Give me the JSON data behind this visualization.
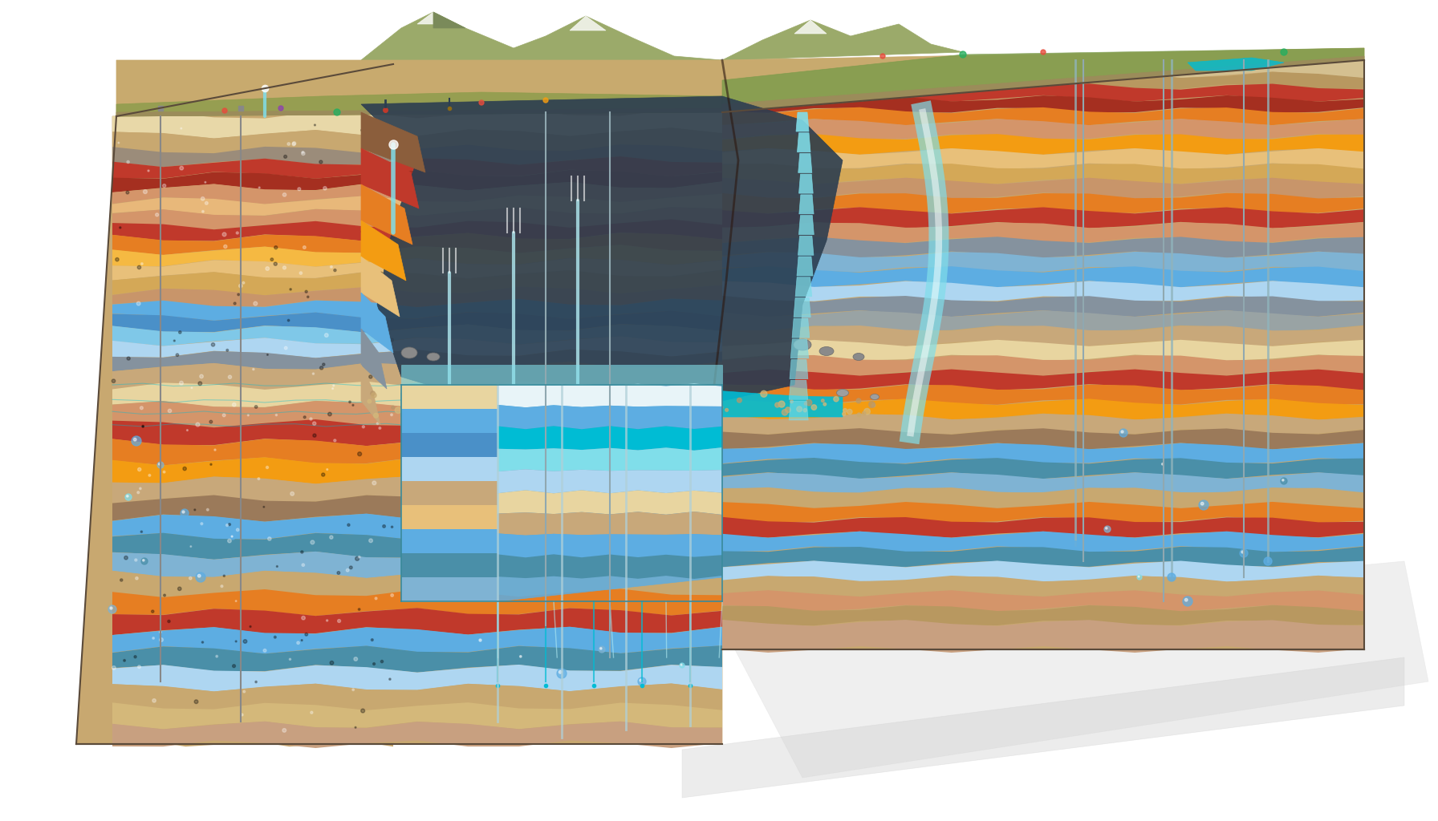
{
  "background_color": "#ffffff",
  "layer_colors_front": [
    "#e8d5a0",
    "#c8a86b",
    "#d4956a",
    "#8b5e3c",
    "#c0392b",
    "#e67e22",
    "#f39c12",
    "#e8c07a",
    "#d4a857",
    "#c8956a",
    "#b8860b",
    "#cd853f",
    "#a0522d",
    "#8b6914",
    "#4a8fa8",
    "#5dade2",
    "#7fb3d3",
    "#aed6f1",
    "#85929e",
    "#99a3a4",
    "#c8a87a",
    "#e8d5a0",
    "#d4956a",
    "#c0392b"
  ],
  "layer_colors_left": [
    "#d4c090",
    "#b89860",
    "#c4855a",
    "#7b4e2c",
    "#b02920",
    "#d66e12",
    "#e38c02",
    "#d8b06a",
    "#c4984a",
    "#b8856a",
    "#a8760b",
    "#bd753f",
    "#90421d",
    "#7b5904",
    "#3a7f98",
    "#4dade2",
    "#6fa3c3",
    "#9ec6e1",
    "#758290",
    "#899394",
    "#b8986a",
    "#d8c590",
    "#c4855a",
    "#b02920"
  ],
  "top_colors": [
    "#8b7355",
    "#9b8365",
    "#7a8c3a",
    "#8a9c4a",
    "#c8aa6e",
    "#d4b87a",
    "#6b8b3a",
    "#7a9b4a"
  ],
  "water_color": "#00bcd4",
  "water_color2": "#0097a7",
  "water_highlight": "#80deea",
  "spring_color": "#b2ebf2",
  "rock_color": "#9e9e9e",
  "rock_color2": "#757575",
  "sand_color": "#c8a96e",
  "grass_color": "#7a9b4a",
  "mountain_color": "#8faa6a",
  "sky_color": "#e8f4f8",
  "soil_color": "#c8a870",
  "pipe_color": "#b0c4c8",
  "pipe_color2": "#90a4a8",
  "well_color": "#888888"
}
